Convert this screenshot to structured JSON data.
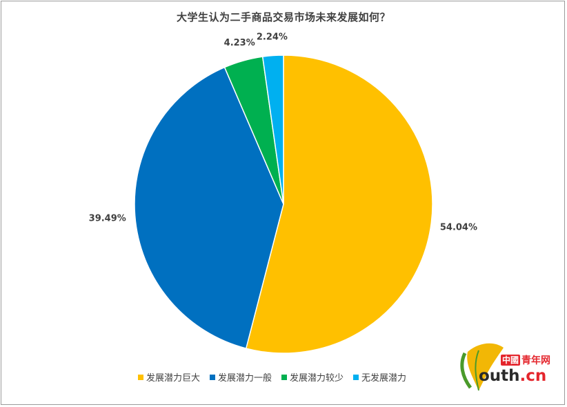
{
  "chart_data": {
    "type": "pie",
    "title": "大学生认为二手商品交易市场未来发展如何？",
    "categories": [
      "发展潜力巨大",
      "发展潜力一般",
      "发展潜力较少",
      "无发展潜力"
    ],
    "values": [
      54.04,
      39.49,
      4.23,
      2.24
    ],
    "labels": [
      "54.04%",
      "39.49%",
      "4.23%",
      "2.24%"
    ],
    "colors": [
      "#FFC000",
      "#0070C0",
      "#00B050",
      "#00B0F0"
    ],
    "start_angle_deg": 0,
    "direction": "clockwise",
    "legend_position": "bottom"
  },
  "logo": {
    "box_text": "中國",
    "cn_text": "青年网",
    "url_main": "outh",
    "url_tld": ".cn"
  }
}
